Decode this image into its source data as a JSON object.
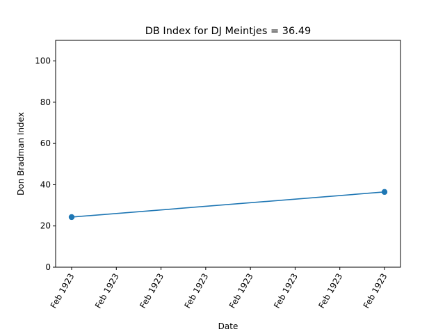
{
  "chart_data": {
    "type": "line",
    "title": "DB Index for DJ Meintjes = 36.49",
    "xlabel": "Date",
    "ylabel": "Don Bradman Index",
    "ylim": [
      0,
      110
    ],
    "yticks": [
      0,
      20,
      40,
      60,
      80,
      100
    ],
    "xtick_labels": [
      "Feb 1923",
      "Feb 1923",
      "Feb 1923",
      "Feb 1923",
      "Feb 1923",
      "Feb 1923",
      "Feb 1923",
      "Feb 1923"
    ],
    "grid": false,
    "series": [
      {
        "color": "#1f77b4",
        "marker": "circle",
        "points": [
          {
            "x": "Feb 1923",
            "y": 24.3
          },
          {
            "x": "Feb 1923",
            "y": 36.49
          }
        ]
      }
    ]
  }
}
